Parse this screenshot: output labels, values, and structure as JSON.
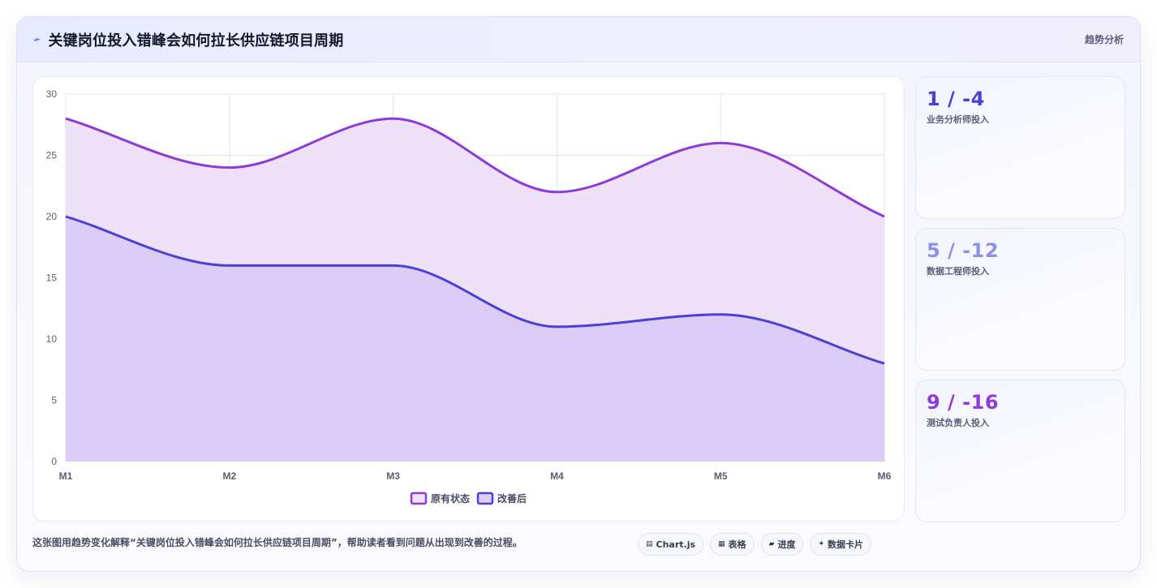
{
  "header": {
    "title": "关键岗位投入错峰会如何拉长供应链项目周期",
    "tag": "趋势分析"
  },
  "stats": [
    {
      "value": "1 / -4",
      "label": "业务分析师投入",
      "color": "#4a3fd6"
    },
    {
      "value": "5 / -12",
      "label": "数据工程师投入",
      "color": "#8a93e8"
    },
    {
      "value": "9 / -16",
      "label": "测试负责人投入",
      "color": "#8d3ad8"
    }
  ],
  "footer": {
    "note": "这张图用趋势变化解释“关键岗位投入错峰会如何拉长供应链项目周期”，帮助读者看到问题从出现到改善的过程。",
    "chips": [
      {
        "icon": "chart-icon",
        "glyph": "▤",
        "label": "Chart.js"
      },
      {
        "icon": "table-icon",
        "glyph": "▦",
        "label": "表格"
      },
      {
        "icon": "progress-icon",
        "glyph": "▰",
        "label": "进度"
      },
      {
        "icon": "sparkle-icon",
        "glyph": "✦",
        "label": "数据卡片"
      }
    ]
  },
  "chart_data": {
    "type": "area",
    "title": "",
    "xlabel": "",
    "ylabel": "",
    "categories": [
      "M1",
      "M2",
      "M3",
      "M4",
      "M5",
      "M6"
    ],
    "ylim": [
      0,
      30
    ],
    "yticks": [
      0,
      5,
      10,
      15,
      20,
      25,
      30
    ],
    "grid": true,
    "legend_position": "bottom",
    "series": [
      {
        "name": "原有状态",
        "values": [
          28,
          24,
          28,
          22,
          26,
          20
        ],
        "color": "#8d3ad8",
        "fill": "#eee1f8"
      },
      {
        "name": "改善后",
        "values": [
          20,
          16,
          16,
          11,
          12,
          8
        ],
        "color": "#4a3fd6",
        "fill": "#dccdf8"
      }
    ]
  }
}
